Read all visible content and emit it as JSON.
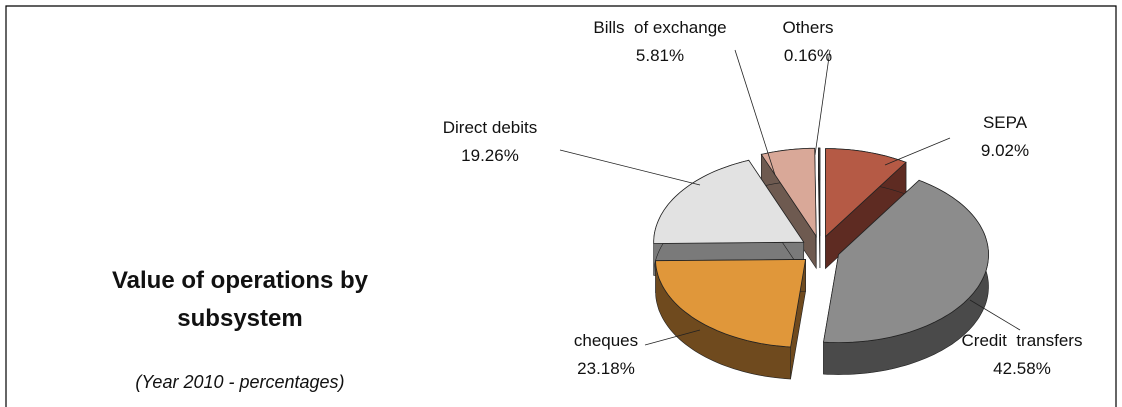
{
  "chart_data": {
    "type": "pie3d",
    "title": "Value of operations by subsystem",
    "subtitle": "(Year 2010 - percentages)",
    "categories": [
      "SEPA",
      "Credit  transfers",
      "cheques",
      "Direct debits",
      "Bills  of exchange",
      "Others"
    ],
    "values": [
      9.02,
      42.58,
      23.18,
      19.26,
      5.81,
      0.16
    ],
    "value_labels": [
      "9.02%",
      "42.58%",
      "23.18%",
      "19.26%",
      "5.81%",
      "0.16%"
    ],
    "colors": [
      "#b55a45",
      "#8c8c8c",
      "#e0973a",
      "#e2e2e2",
      "#d9a898",
      "#555555"
    ],
    "side_colors": [
      "#5e2b22",
      "#4a4a4a",
      "#6f4a1e",
      "#7a7a7a",
      "#6e5a50",
      "#333333"
    ]
  }
}
